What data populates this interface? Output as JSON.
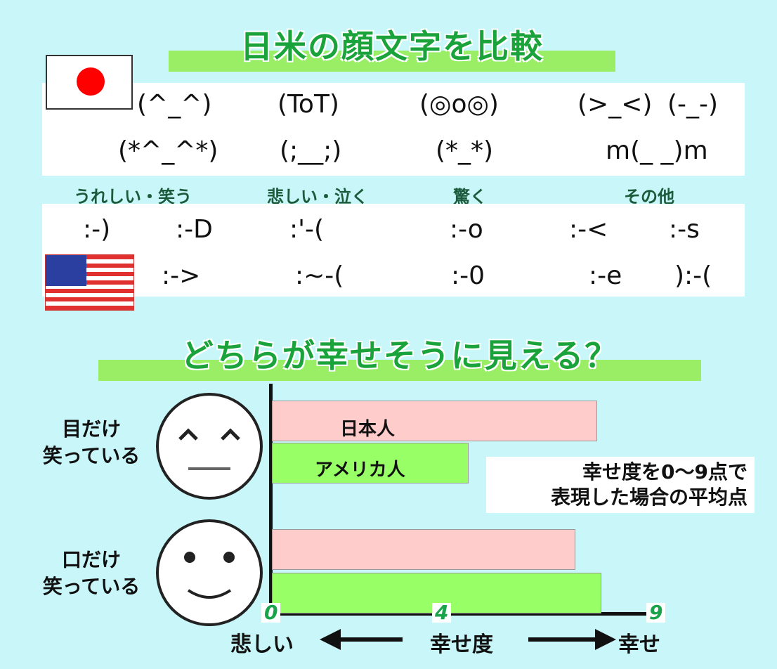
{
  "title1": "日米の顔文字を比較",
  "japan_emoticons": {
    "row1": [
      "(^_^)",
      "(ToT)",
      "(◎o◎)",
      "(>_<)",
      "(-_-)"
    ],
    "row2": [
      "(*^_^*)",
      "(;__;)",
      "(*_*)",
      "m(_ _)m"
    ]
  },
  "categories": [
    "うれしい・笑う",
    "悲しい・泣く",
    "驚く",
    "その他"
  ],
  "us_emoticons": {
    "row1": [
      ":-)",
      ":-D",
      ":'-(",
      ":-o",
      ":-<",
      ":-s"
    ],
    "row2": [
      ":->",
      ":~-(",
      ":-0",
      ":-e",
      "):-("
    ]
  },
  "title2": "どちらが幸せそうに見える？",
  "note": [
    "幸せ度を0〜9点で",
    "表現した場合の平均点"
  ],
  "chart_data": {
    "type": "bar",
    "orientation": "horizontal",
    "categories": [
      "目だけ笑っている",
      "口だけ笑っている"
    ],
    "category_lines": [
      [
        "目だけ",
        "笑っている"
      ],
      [
        "口だけ",
        "笑っている"
      ]
    ],
    "series": [
      {
        "name": "日本人",
        "color": "#ffcccc",
        "values": [
          7.6,
          7.1
        ]
      },
      {
        "name": "アメリカ人",
        "color": "#99ff66",
        "values": [
          4.6,
          7.7
        ]
      }
    ],
    "xlim": [
      0,
      9
    ],
    "xticks": [
      "0",
      "4",
      "9"
    ],
    "xlabel": "幸せ度",
    "x_low_label": "悲しい",
    "x_high_label": "幸せ"
  }
}
